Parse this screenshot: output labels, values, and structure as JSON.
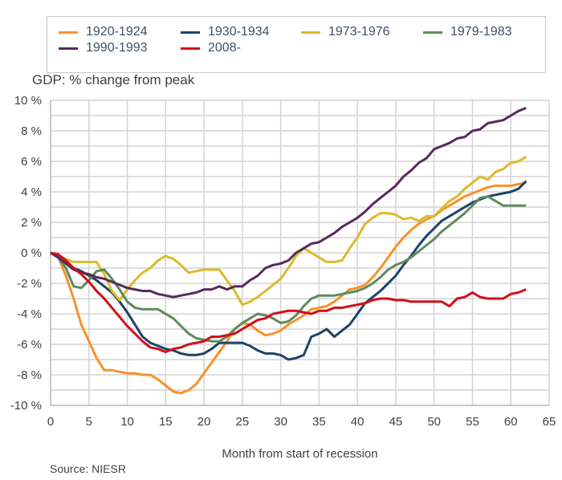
{
  "chart_data": {
    "type": "line",
    "title": "GDP: % change from peak",
    "xlabel": "Month from start of recession",
    "ylabel": "",
    "xlim": [
      0,
      65
    ],
    "ylim": [
      -10,
      10
    ],
    "xticks": [
      "0",
      "5",
      "10",
      "15",
      "20",
      "25",
      "30",
      "35",
      "40",
      "45",
      "50",
      "55",
      "60",
      "65"
    ],
    "yticks": [
      "10 %",
      "8 %",
      "6 %",
      "4 %",
      "2 %",
      "0 %",
      "-2 %",
      "-4 %",
      "-6 %",
      "-8 %",
      "-10 %"
    ],
    "grid": true,
    "legend_position": "top",
    "source": "Source: NIESR",
    "series": [
      {
        "name": "1920-1924",
        "color": "#f7922a",
        "values": [
          0,
          -0.3,
          -1.5,
          -3,
          -4.7,
          -5.8,
          -6.9,
          -7.7,
          -7.7,
          -7.8,
          -7.9,
          -7.9,
          -8,
          -8,
          -8.3,
          -8.7,
          -9.1,
          -9.2,
          -9,
          -8.6,
          -7.9,
          -7.2,
          -6.5,
          -5.8,
          -5,
          -4.6,
          -4.7,
          -5.1,
          -5.4,
          -5.3,
          -5.1,
          -4.7,
          -4.4,
          -4.1,
          -3.7,
          -3.6,
          -3.5,
          -3.2,
          -2.8,
          -2.4,
          -2.3,
          -2.1,
          -1.6,
          -1,
          -0.3,
          0.4,
          1,
          1.5,
          1.9,
          2.2,
          2.4,
          2.8,
          3.1,
          3.4,
          3.7,
          3.9,
          4.1,
          4.3,
          4.4,
          4.4,
          4.4,
          4.5,
          4.6
        ]
      },
      {
        "name": "1930-1934",
        "color": "#1d4468",
        "values": [
          0,
          -0.3,
          -0.7,
          -1,
          -1.2,
          -1.5,
          -1.8,
          -2.2,
          -2.6,
          -3.2,
          -3.9,
          -4.7,
          -5.5,
          -5.9,
          -6.1,
          -6.3,
          -6.4,
          -6.6,
          -6.7,
          -6.7,
          -6.6,
          -6.3,
          -5.9,
          -5.9,
          -5.9,
          -5.9,
          -6.1,
          -6.4,
          -6.6,
          -6.6,
          -6.7,
          -7,
          -6.9,
          -6.7,
          -5.5,
          -5.3,
          -5,
          -5.5,
          -5.1,
          -4.7,
          -4,
          -3.3,
          -2.9,
          -2.5,
          -2,
          -1.5,
          -0.8,
          -0.2,
          0.5,
          1.1,
          1.6,
          2.1,
          2.4,
          2.7,
          3,
          3.3,
          3.5,
          3.7,
          3.8,
          3.9,
          4,
          4.2,
          4.7
        ]
      },
      {
        "name": "1973-1976",
        "color": "#dcba2c",
        "values": [
          0,
          -0.2,
          -0.4,
          -0.6,
          -0.6,
          -0.6,
          -0.6,
          -1.4,
          -2.5,
          -3.1,
          -2.4,
          -1.8,
          -1.3,
          -1,
          -0.5,
          -0.2,
          -0.4,
          -0.8,
          -1.3,
          -1.2,
          -1.1,
          -1.1,
          -1.1,
          -1.8,
          -2.5,
          -3.4,
          -3.2,
          -2.9,
          -2.5,
          -2.1,
          -1.7,
          -1,
          -0.2,
          0.3,
          0,
          -0.3,
          -0.6,
          -0.6,
          -0.5,
          0.3,
          1,
          1.9,
          2.3,
          2.6,
          2.6,
          2.5,
          2.2,
          2.3,
          2.1,
          2.4,
          2.4,
          2.9,
          3.4,
          3.7,
          4.2,
          4.6,
          5,
          4.8,
          5.3,
          5.5,
          5.9,
          6,
          6.3
        ]
      },
      {
        "name": "1979-1983",
        "color": "#5f8a5c",
        "values": [
          0,
          -0.3,
          -1,
          -2.2,
          -2.3,
          -1.8,
          -1.2,
          -1.1,
          -1.7,
          -2.4,
          -3.2,
          -3.6,
          -3.7,
          -3.7,
          -3.7,
          -4,
          -4.3,
          -4.8,
          -5.3,
          -5.6,
          -5.7,
          -5.8,
          -5.8,
          -5.5,
          -5,
          -4.6,
          -4.3,
          -4,
          -4.1,
          -4.3,
          -4.6,
          -4.5,
          -4.1,
          -3.5,
          -3,
          -2.8,
          -2.8,
          -2.8,
          -2.7,
          -2.6,
          -2.5,
          -2.3,
          -2,
          -1.6,
          -1.1,
          -0.8,
          -0.6,
          -0.3,
          0.1,
          0.5,
          0.9,
          1.4,
          1.8,
          2.2,
          2.6,
          3.1,
          3.6,
          3.7,
          3.4,
          3.1,
          3.1,
          3.1,
          3.1
        ]
      },
      {
        "name": "1990-1993",
        "color": "#572a5b",
        "values": [
          0,
          -0.3,
          -0.7,
          -1.1,
          -1.3,
          -1.4,
          -1.6,
          -1.7,
          -1.9,
          -2.1,
          -2.3,
          -2.4,
          -2.5,
          -2.5,
          -2.7,
          -2.8,
          -2.9,
          -2.8,
          -2.7,
          -2.6,
          -2.4,
          -2.4,
          -2.2,
          -2.4,
          -2.2,
          -2.2,
          -1.8,
          -1.5,
          -1,
          -0.8,
          -0.7,
          -0.5,
          0,
          0.3,
          0.6,
          0.7,
          1,
          1.3,
          1.7,
          2,
          2.3,
          2.7,
          3.2,
          3.6,
          4,
          4.4,
          5,
          5.4,
          5.9,
          6.2,
          6.8,
          7,
          7.2,
          7.5,
          7.6,
          8,
          8.1,
          8.5,
          8.6,
          8.7,
          9,
          9.3,
          9.5
        ]
      },
      {
        "name": "2008-",
        "color": "#d0101a",
        "values": [
          0,
          -0.1,
          -0.5,
          -1,
          -1.4,
          -1.9,
          -2.5,
          -3,
          -3.6,
          -4.2,
          -4.8,
          -5.3,
          -5.8,
          -6.2,
          -6.3,
          -6.5,
          -6.3,
          -6.2,
          -6,
          -5.9,
          -5.8,
          -5.5,
          -5.5,
          -5.4,
          -5.3,
          -5,
          -4.7,
          -4.4,
          -4.3,
          -4,
          -3.9,
          -3.8,
          -3.8,
          -3.9,
          -4,
          -3.8,
          -3.8,
          -3.6,
          -3.6,
          -3.5,
          -3.4,
          -3.3,
          -3.1,
          -3,
          -3,
          -3.1,
          -3.1,
          -3.2,
          -3.2,
          -3.2,
          -3.2,
          -3.2,
          -3.5,
          -3,
          -2.9,
          -2.6,
          -2.9,
          -3,
          -3,
          -3,
          -2.7,
          -2.6,
          -2.4
        ]
      }
    ]
  }
}
